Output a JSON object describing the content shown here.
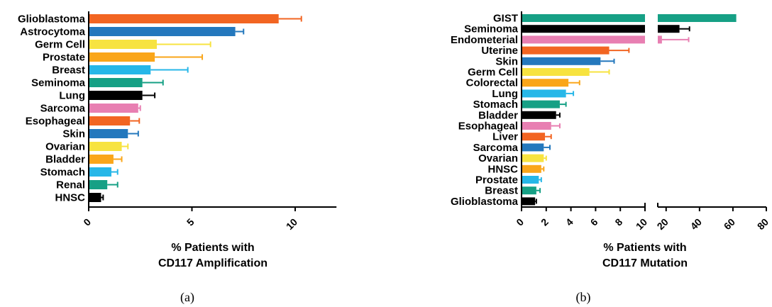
{
  "chart_data": [
    {
      "id": "a",
      "type": "bar",
      "orientation": "horizontal",
      "panel_label": "(a)",
      "xlabel": [
        "% Patients with",
        "CD117  Amplification"
      ],
      "xlim": [
        0,
        12
      ],
      "xticks": [
        0,
        5,
        10
      ],
      "categories": [
        "Glioblastoma",
        "Astrocytoma",
        "Germ Cell",
        "Prostate",
        "Breast",
        "Seminoma",
        "Lung",
        "Sarcoma",
        "Esophageal",
        "Skin",
        "Ovarian",
        "Bladder",
        "Stomach",
        "Renal",
        "HNSC"
      ],
      "values": [
        9.2,
        7.1,
        3.3,
        3.2,
        3.0,
        2.6,
        2.6,
        2.4,
        2.0,
        1.9,
        1.6,
        1.2,
        1.1,
        0.9,
        0.6
      ],
      "errors": [
        1.1,
        0.4,
        2.6,
        2.3,
        1.8,
        1.0,
        0.6,
        0.1,
        0.45,
        0.5,
        0.3,
        0.4,
        0.3,
        0.5,
        0.1
      ],
      "colors": [
        "#f26522",
        "#2478bd",
        "#f7e340",
        "#faa61a",
        "#27b7e8",
        "#16a085",
        "#000000",
        "#e87fb2",
        "#f26522",
        "#2478bd",
        "#f7e340",
        "#faa61a",
        "#27b7e8",
        "#16a085",
        "#000000"
      ]
    },
    {
      "id": "b",
      "type": "bar",
      "orientation": "horizontal",
      "panel_label": "(b)",
      "xlabel": [
        "% Patients with",
        "CD117  Mutation"
      ],
      "broken_axis": true,
      "xlim_segments": [
        [
          0,
          10
        ],
        [
          15,
          80
        ]
      ],
      "xticks_segment1": [
        0,
        2,
        4,
        6,
        8,
        10
      ],
      "xticks_segment2": [
        20,
        40,
        60,
        80
      ],
      "categories": [
        "GIST",
        "Seminoma",
        "Endometerial",
        "Uterine",
        "Skin",
        "Germ Cell",
        "Colorectal",
        "Lung",
        "Stomach",
        "Bladder",
        "Esophageal",
        "Liver",
        "Sarcoma",
        "Ovarian",
        "HNSC",
        "Prostate",
        "Breast",
        "Glioblastoma"
      ],
      "values": [
        62,
        28,
        17.5,
        7.1,
        6.4,
        5.5,
        3.8,
        3.6,
        3.1,
        2.8,
        2.4,
        1.9,
        1.8,
        1.8,
        1.6,
        1.4,
        1.2,
        1.1
      ],
      "errors": [
        0,
        6,
        16,
        1.6,
        1.1,
        1.6,
        0.9,
        0.6,
        0.5,
        0.3,
        0.7,
        0.5,
        0.5,
        0.2,
        0.2,
        0.2,
        0.3,
        0.1
      ],
      "colors": [
        "#16a085",
        "#000000",
        "#e87fb2",
        "#f26522",
        "#2478bd",
        "#f7e340",
        "#faa61a",
        "#27b7e8",
        "#16a085",
        "#000000",
        "#e87fb2",
        "#f26522",
        "#2478bd",
        "#f7e340",
        "#faa61a",
        "#27b7e8",
        "#16a085",
        "#000000"
      ]
    }
  ]
}
